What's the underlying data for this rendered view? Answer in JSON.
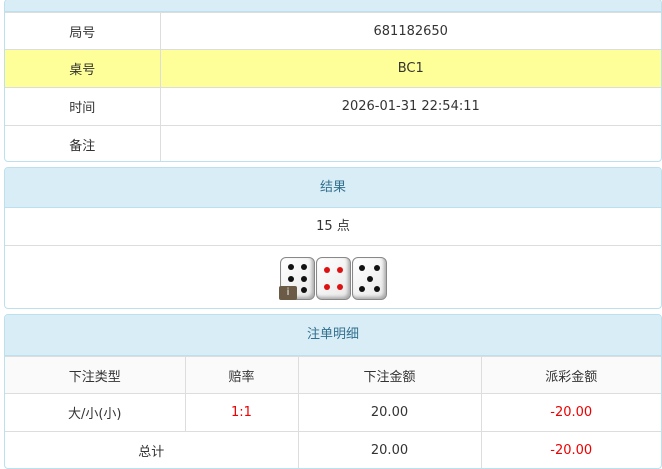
{
  "info": {
    "rows": [
      {
        "label": "局号",
        "value": "681182650"
      },
      {
        "label": "桌号",
        "value": "BC1"
      },
      {
        "label": "时间",
        "value": "2026-01-31 22:54:11"
      },
      {
        "label": "备注",
        "value": ""
      }
    ]
  },
  "result": {
    "title": "结果",
    "points": "15 点",
    "dice": [
      6,
      4,
      5
    ],
    "dice_colors": [
      "#111111",
      "#dd1111",
      "#111111"
    ],
    "info_badge": "i"
  },
  "bets": {
    "title": "注单明细",
    "headers": [
      "下注类型",
      "赔率",
      "下注金额",
      "派彩金额"
    ],
    "rows": [
      {
        "type": "大/小(小)",
        "odds": "1:1",
        "amount": "20.00",
        "payout": "-20.00"
      }
    ],
    "total": {
      "label": "总计",
      "amount": "20.00",
      "payout": "-20.00"
    }
  }
}
